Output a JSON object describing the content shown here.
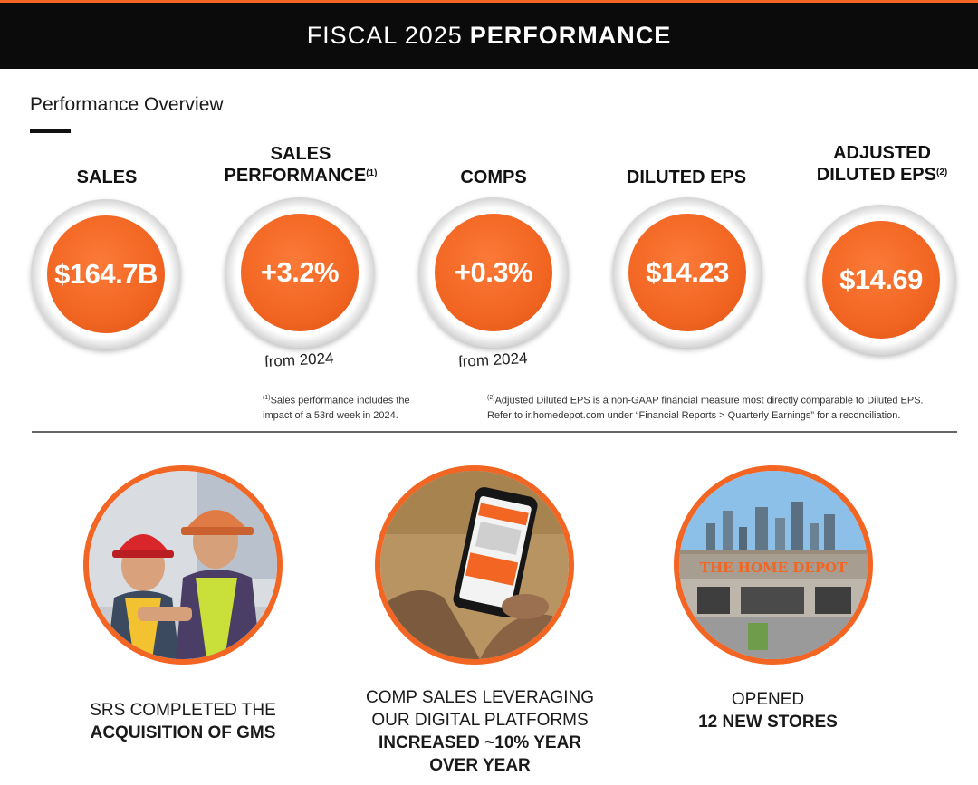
{
  "banner": {
    "title_light": "FISCAL 2025",
    "title_bold": "PERFORMANCE"
  },
  "overview": {
    "title": "Performance Overview"
  },
  "stats": [
    {
      "label": "SALES",
      "sup": "",
      "value": "$164.7B",
      "note": ""
    },
    {
      "label": "SALES PERFORMANCE",
      "sup": "(1)",
      "value": "+3.2%",
      "note": "from 2024"
    },
    {
      "label": "COMPS",
      "sup": "",
      "value": "+0.3%",
      "note": "from 2024"
    },
    {
      "label": "DILUTED EPS",
      "sup": "",
      "value": "$14.23",
      "note": ""
    },
    {
      "label": "ADJUSTED DILUTED EPS",
      "sup": "(2)",
      "value": "$14.69",
      "note": ""
    }
  ],
  "footnotes": {
    "note1_mark": "(1)",
    "note1_line1": "Sales performance includes the",
    "note1_line2": "impact of a 53rd week in 2024.",
    "note2_mark": "(2)",
    "note2_line1": "Adjusted Diluted EPS is a non-GAAP financial measure most directly comparable to Diluted EPS.",
    "note2_line2": "Refer to ir.homedepot.com under “Financial Reports > Quarterly Earnings” for a reconciliation."
  },
  "highlights": [
    {
      "plain": [
        "SRS COMPLETED THE"
      ],
      "bold": [
        "ACQUISITION OF GMS"
      ]
    },
    {
      "plain": [
        "COMP SALES LEVERAGING",
        "OUR DIGITAL PLATFORMS"
      ],
      "bold": [
        "INCREASED ~10% YEAR",
        "OVER YEAR"
      ]
    },
    {
      "plain": [
        "OPENED"
      ],
      "bold": [
        "12 NEW STORES"
      ]
    }
  ],
  "store_sign": "THE HOME DEPOT",
  "colors": {
    "accent": "#f26522",
    "banner": "#0b0b0b",
    "ring": "#c8c8c8"
  }
}
